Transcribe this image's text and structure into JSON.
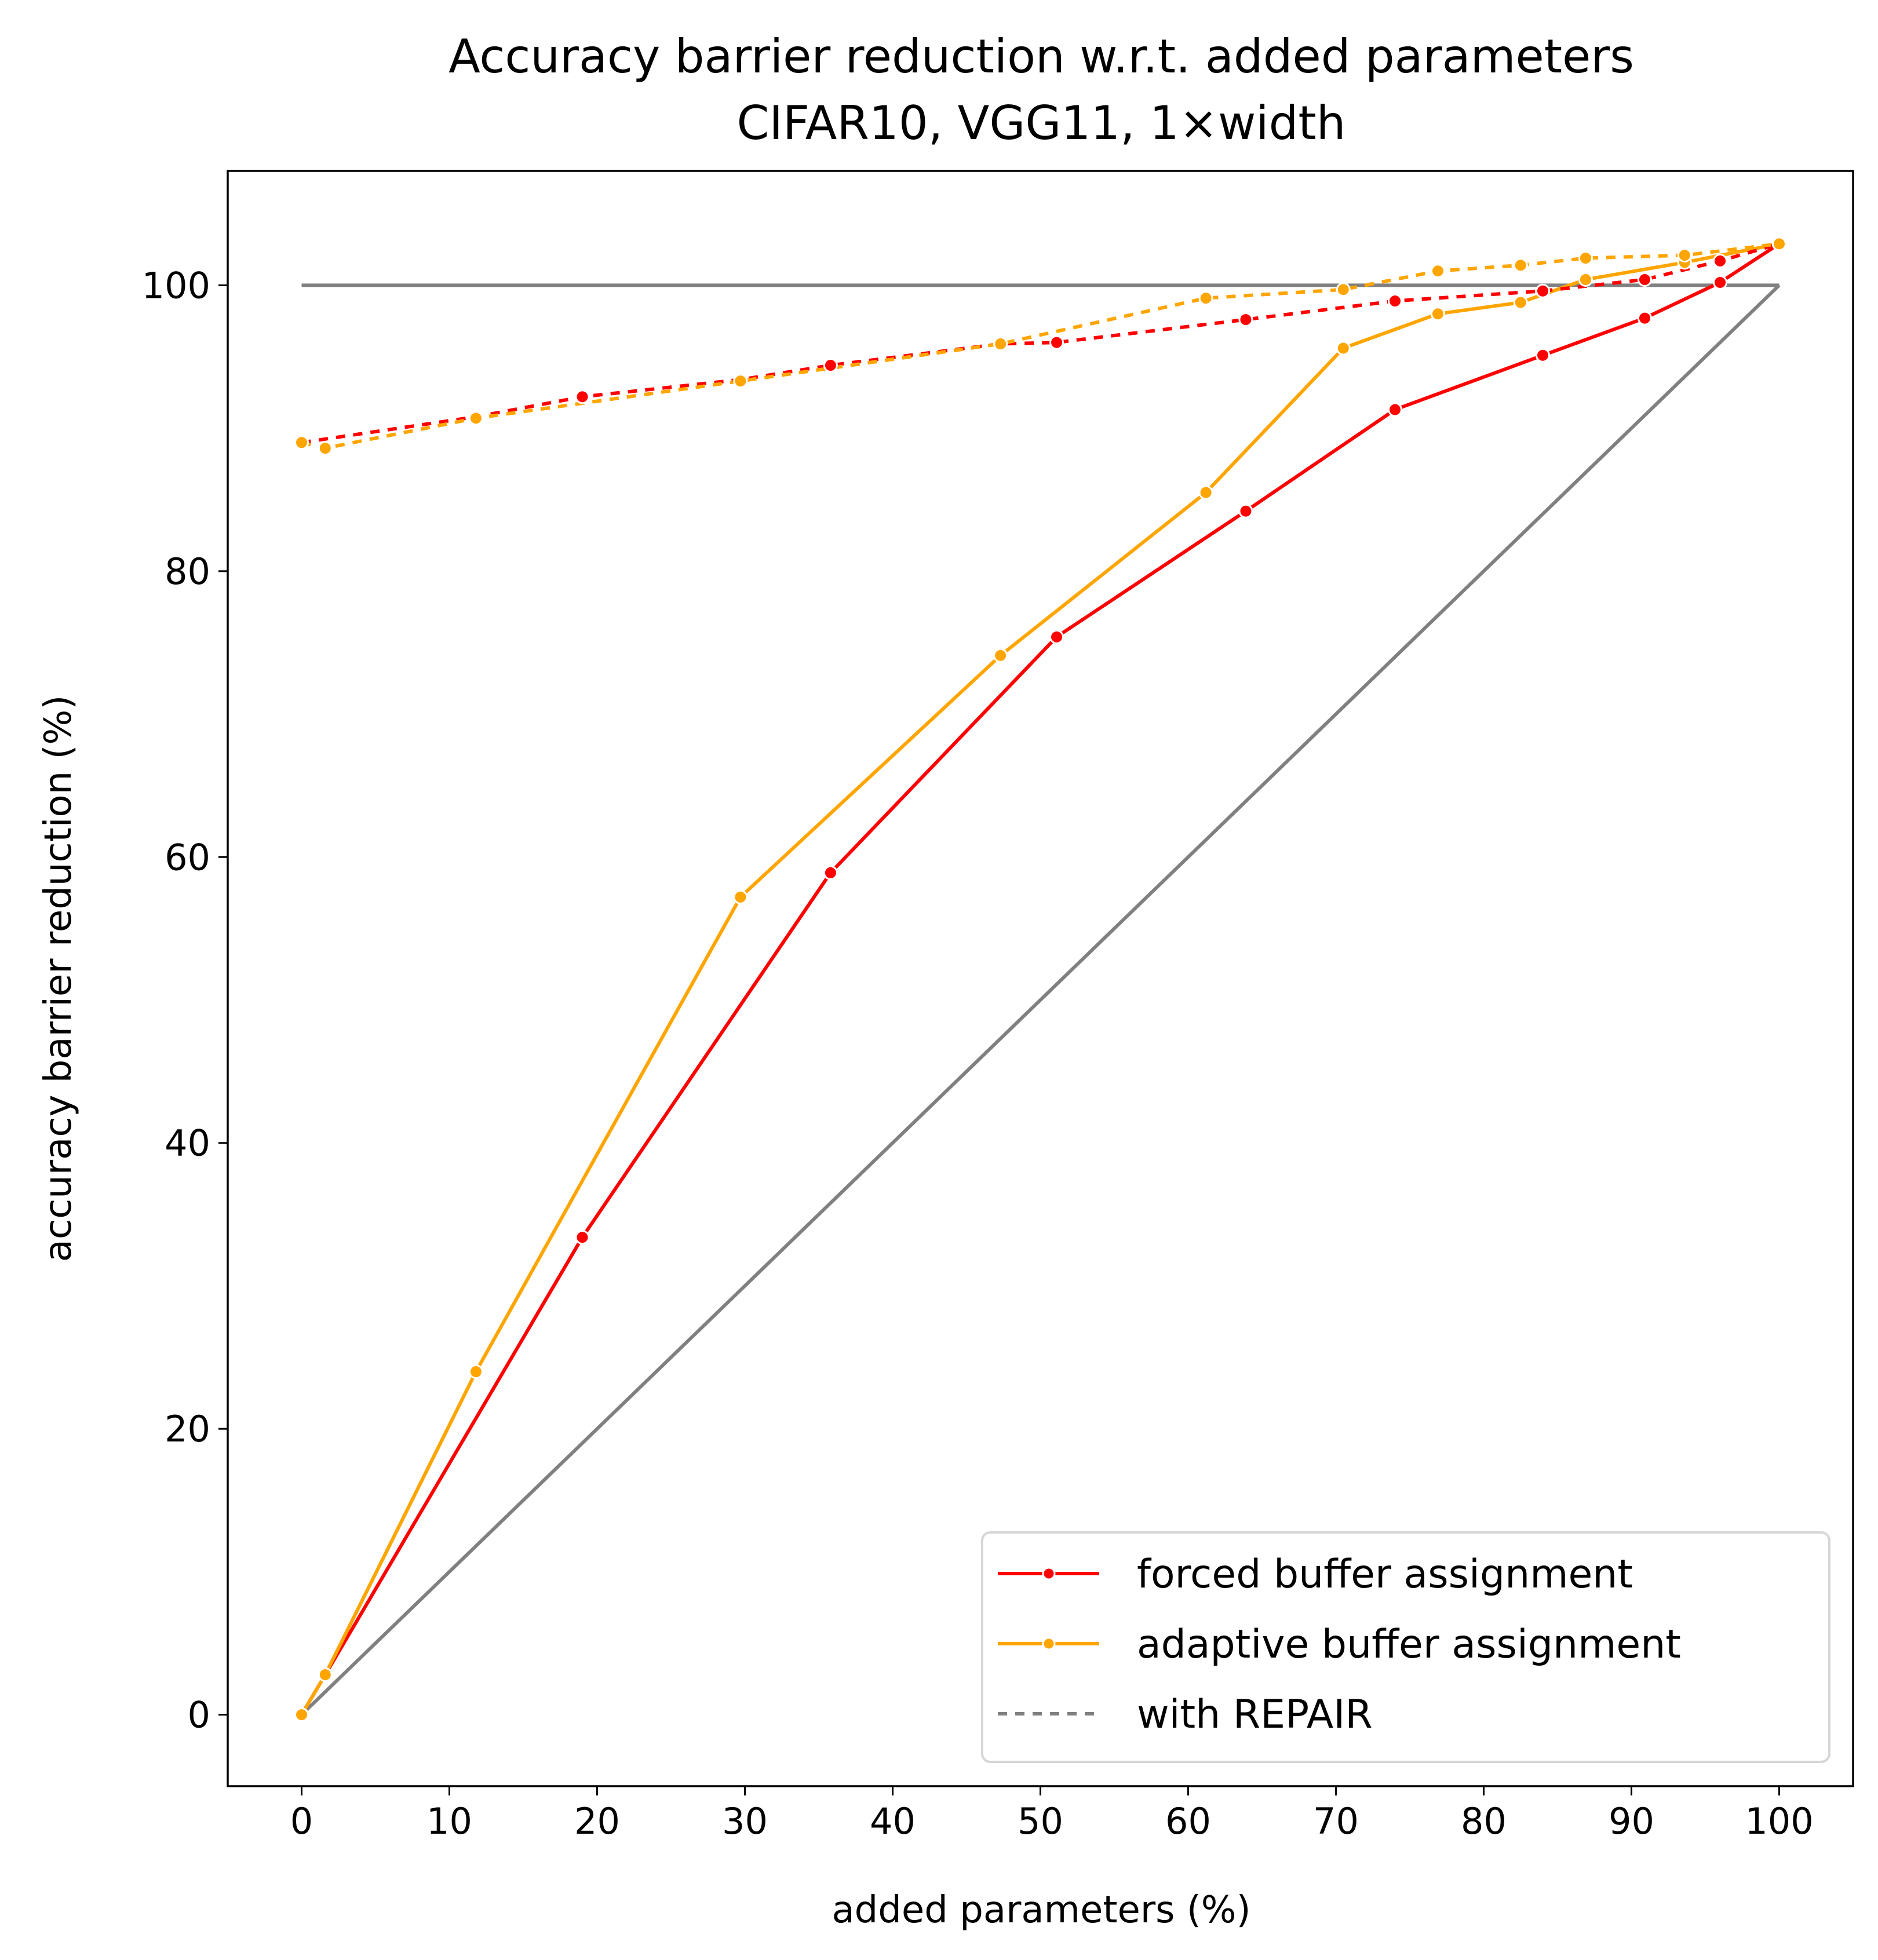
{
  "chart_data": {
    "type": "line",
    "title": "Accuracy barrier reduction w.r.t. added parameters",
    "subtitle": "CIFAR10, VGG11, 1×width",
    "xlabel": "added parameters (%)",
    "ylabel": "accuracy barrier reduction (%)",
    "xlim": [
      -5,
      105
    ],
    "ylim": [
      -5,
      108
    ],
    "xticks": [
      0,
      10,
      20,
      30,
      40,
      50,
      60,
      70,
      80,
      90,
      100
    ],
    "yticks": [
      0,
      20,
      40,
      60,
      80,
      100
    ],
    "grid": false,
    "legend_position": "lower-right",
    "colors": {
      "forced": "#ff0000",
      "adaptive": "#ffa500",
      "reference": "#808080"
    },
    "legend": [
      {
        "label": "forced buffer assignment",
        "style": "solid-marker",
        "color": "#ff0000"
      },
      {
        "label": "adaptive buffer assignment",
        "style": "solid-marker",
        "color": "#ffa500"
      },
      {
        "label": "with REPAIR",
        "style": "dotted",
        "color": "#808080"
      }
    ],
    "reference_lines": [
      {
        "x": [
          0,
          100
        ],
        "y": [
          100,
          100
        ],
        "color": "#808080"
      },
      {
        "x": [
          0,
          100
        ],
        "y": [
          0,
          100
        ],
        "color": "#808080"
      }
    ],
    "series": [
      {
        "key": "forced",
        "color": "#ff0000",
        "dashed": false,
        "x": [
          0,
          1.6,
          19,
          35.8,
          51.1,
          63.9,
          74,
          84,
          90.9,
          96,
          100
        ],
        "y": [
          0,
          2.8,
          33.4,
          58.9,
          75.4,
          84.2,
          91.3,
          95.1,
          97.7,
          100.2,
          102.9
        ]
      },
      {
        "key": "adaptive",
        "color": "#ffa500",
        "dashed": false,
        "x": [
          0,
          1.6,
          11.8,
          29.7,
          47.3,
          61.2,
          70.5,
          76.9,
          82.5,
          86.9,
          93.6,
          100
        ],
        "y": [
          0,
          2.8,
          24,
          57.2,
          74.1,
          85.5,
          95.6,
          98,
          98.8,
          100.4,
          101.6,
          102.9
        ]
      },
      {
        "key": "forced-repair",
        "color": "#ff0000",
        "dashed": true,
        "x": [
          0,
          11.8,
          19,
          29.7,
          35.8,
          47.3,
          51.1,
          63.9,
          74,
          84,
          90.9,
          96,
          100
        ],
        "y": [
          89,
          90.8,
          92.2,
          93.4,
          94.4,
          95.9,
          96,
          97.6,
          98.9,
          99.6,
          100.4,
          101.7,
          102.9
        ]
      },
      {
        "key": "adaptive-repair",
        "color": "#ffa500",
        "dashed": true,
        "x": [
          0,
          1.6,
          11.8,
          29.7,
          47.3,
          61.2,
          70.5,
          76.9,
          82.5,
          86.9,
          93.6,
          100
        ],
        "y": [
          89,
          88.6,
          90.7,
          93.3,
          95.9,
          99.1,
          99.7,
          101,
          101.4,
          101.9,
          102.1,
          102.9
        ]
      }
    ]
  }
}
